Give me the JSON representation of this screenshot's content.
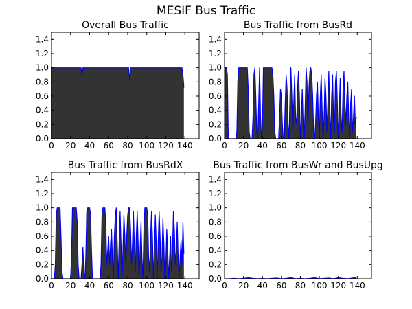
{
  "figure": {
    "title": "MESIF Bus Traffic"
  },
  "colors": {
    "fill": "#333333",
    "line": "#0000ff",
    "axes_bg": "#ffffff"
  },
  "chart_data": [
    {
      "type": "area",
      "title": "Overall Bus Traffic",
      "xlim": [
        0,
        155
      ],
      "ylim": [
        0.0,
        1.5
      ],
      "xticks": [
        0,
        20,
        40,
        60,
        80,
        100,
        120,
        140
      ],
      "yticks": [
        0.0,
        0.2,
        0.4,
        0.6,
        0.8,
        1.0,
        1.2,
        1.4
      ],
      "grid": false,
      "series": [
        {
          "x": [
            0,
            31,
            32,
            33,
            81,
            82,
            83,
            137,
            138,
            139
          ],
          "y": [
            1.0,
            1.0,
            0.9,
            1.0,
            1.0,
            0.83,
            1.0,
            1.0,
            0.9,
            0.72
          ]
        }
      ]
    },
    {
      "type": "area",
      "title": "Bus Traffic from BusRd",
      "xlim": [
        0,
        155
      ],
      "ylim": [
        0.0,
        1.5
      ],
      "xticks": [
        0,
        20,
        40,
        60,
        80,
        100,
        120,
        140
      ],
      "yticks": [
        0.0,
        0.2,
        0.4,
        0.6,
        0.8,
        1.0,
        1.2,
        1.4
      ],
      "grid": false,
      "series": [
        {
          "x": [
            0,
            1,
            2,
            3,
            4,
            5,
            6,
            7,
            8,
            9,
            10,
            11,
            12,
            13,
            14,
            15,
            16,
            17,
            18,
            19,
            20,
            21,
            22,
            23,
            24,
            25,
            26,
            27,
            28,
            29,
            30,
            31,
            32,
            33,
            34,
            35,
            36,
            37,
            38,
            39,
            40,
            41,
            42,
            43,
            44,
            45,
            46,
            47,
            48,
            49,
            50,
            51,
            52,
            53,
            54,
            55,
            56,
            57,
            58,
            59,
            60,
            61,
            62,
            63,
            64,
            65,
            66,
            67,
            68,
            69,
            70,
            71,
            72,
            73,
            74,
            75,
            76,
            77,
            78,
            79,
            80,
            81,
            82,
            83,
            84,
            85,
            86,
            87,
            88,
            89,
            90,
            91,
            92,
            93,
            94,
            95,
            96,
            97,
            98,
            99,
            100,
            101,
            102,
            103,
            104,
            105,
            106,
            107,
            108,
            109,
            110,
            111,
            112,
            113,
            114,
            115,
            116,
            117,
            118,
            119,
            120,
            121,
            122,
            123,
            124,
            125,
            126,
            127,
            128,
            129,
            130,
            131,
            132,
            133,
            134,
            135,
            136,
            137,
            138,
            139
          ],
          "y": [
            0.0,
            1.0,
            1.0,
            0.9,
            0.0,
            0.0,
            0.0,
            0.0,
            0.0,
            0.0,
            0.0,
            0.0,
            0.0,
            0.1,
            0.8,
            1.0,
            1.0,
            1.0,
            1.0,
            1.0,
            1.0,
            1.0,
            1.0,
            1.0,
            1.0,
            0.7,
            0.1,
            0.0,
            0.0,
            0.0,
            0.3,
            0.9,
            1.0,
            0.6,
            0.1,
            0.0,
            0.5,
            1.0,
            0.3,
            0.0,
            0.2,
            1.0,
            1.0,
            1.0,
            1.0,
            1.0,
            1.0,
            1.0,
            1.0,
            1.0,
            1.0,
            0.9,
            0.6,
            0.1,
            0.0,
            0.0,
            0.0,
            0.0,
            0.3,
            0.7,
            0.6,
            0.2,
            0.0,
            0.0,
            0.5,
            0.9,
            0.7,
            0.2,
            0.0,
            0.6,
            1.0,
            0.6,
            0.1,
            0.5,
            0.9,
            0.3,
            0.2,
            0.7,
            0.95,
            0.6,
            0.0,
            0.3,
            0.7,
            0.2,
            0.0,
            0.4,
            1.0,
            0.8,
            0.2,
            0.7,
            0.95,
            1.0,
            0.9,
            0.6,
            0.1,
            0.0,
            0.2,
            0.6,
            0.8,
            0.3,
            0.0,
            0.6,
            0.9,
            0.4,
            0.0,
            0.3,
            0.85,
            0.6,
            0.1,
            0.5,
            0.95,
            0.4,
            0.0,
            0.6,
            0.9,
            0.3,
            0.1,
            0.8,
            0.95,
            0.5,
            0.0,
            0.4,
            0.85,
            0.3,
            0.1,
            0.7,
            0.95,
            0.5,
            0.2,
            0.6,
            0.8,
            0.3,
            0.0,
            0.5,
            0.7,
            0.1,
            0.3,
            0.6,
            0.2,
            0.3
          ]
        }
      ]
    },
    {
      "type": "area",
      "title": "Bus Traffic from BusRdX",
      "xlim": [
        0,
        155
      ],
      "ylim": [
        0.0,
        1.5
      ],
      "xticks": [
        0,
        20,
        40,
        60,
        80,
        100,
        120,
        140
      ],
      "yticks": [
        0.0,
        0.2,
        0.4,
        0.6,
        0.8,
        1.0,
        1.2,
        1.4
      ],
      "grid": false,
      "series": [
        {
          "x": [
            0,
            1,
            2,
            3,
            4,
            5,
            6,
            7,
            8,
            9,
            10,
            11,
            12,
            13,
            14,
            15,
            16,
            17,
            18,
            19,
            20,
            21,
            22,
            23,
            24,
            25,
            26,
            27,
            28,
            29,
            30,
            31,
            32,
            33,
            34,
            35,
            36,
            37,
            38,
            39,
            40,
            41,
            42,
            43,
            44,
            45,
            46,
            47,
            48,
            49,
            50,
            51,
            52,
            53,
            54,
            55,
            56,
            57,
            58,
            59,
            60,
            61,
            62,
            63,
            64,
            65,
            66,
            67,
            68,
            69,
            70,
            71,
            72,
            73,
            74,
            75,
            76,
            77,
            78,
            79,
            80,
            81,
            82,
            83,
            84,
            85,
            86,
            87,
            88,
            89,
            90,
            91,
            92,
            93,
            94,
            95,
            96,
            97,
            98,
            99,
            100,
            101,
            102,
            103,
            104,
            105,
            106,
            107,
            108,
            109,
            110,
            111,
            112,
            113,
            114,
            115,
            116,
            117,
            118,
            119,
            120,
            121,
            122,
            123,
            124,
            125,
            126,
            127,
            128,
            129,
            130,
            131,
            132,
            133,
            134,
            135,
            136,
            137,
            138,
            139
          ],
          "y": [
            0.0,
            0.0,
            0.0,
            0.0,
            0.2,
            0.9,
            1.0,
            1.0,
            1.0,
            1.0,
            0.6,
            0.1,
            0.0,
            0.0,
            0.0,
            0.0,
            0.0,
            0.0,
            0.0,
            0.0,
            0.0,
            0.3,
            1.0,
            1.0,
            1.0,
            1.0,
            1.0,
            0.8,
            0.2,
            0.0,
            0.0,
            0.0,
            0.2,
            0.45,
            0.1,
            0.0,
            0.3,
            0.95,
            1.0,
            1.0,
            1.0,
            0.9,
            0.4,
            0.0,
            0.0,
            0.0,
            0.0,
            0.0,
            0.0,
            0.0,
            0.0,
            0.0,
            0.2,
            0.9,
            1.0,
            1.0,
            1.0,
            0.8,
            0.2,
            0.4,
            0.6,
            0.2,
            0.5,
            0.7,
            0.3,
            0.0,
            0.6,
            0.9,
            1.0,
            0.5,
            0.0,
            0.5,
            0.95,
            0.5,
            0.0,
            0.4,
            0.9,
            0.6,
            0.2,
            0.6,
            0.9,
            1.0,
            1.0,
            0.7,
            0.2,
            0.5,
            0.95,
            0.5,
            0.1,
            0.6,
            0.95,
            0.5,
            0.0,
            0.4,
            0.8,
            0.3,
            0.0,
            0.7,
            1.0,
            1.0,
            1.0,
            0.9,
            0.3,
            0.1,
            0.6,
            0.95,
            0.6,
            0.0,
            0.4,
            0.9,
            0.5,
            0.0,
            0.5,
            0.95,
            0.6,
            0.1,
            0.3,
            0.85,
            0.5,
            0.0,
            0.2,
            0.7,
            0.4,
            0.0,
            0.3,
            0.6,
            0.1,
            0.4,
            0.95,
            0.7,
            0.2,
            0.4,
            0.8,
            0.3,
            0.0,
            0.3,
            0.55,
            0.2,
            0.8,
            0.35
          ]
        }
      ]
    },
    {
      "type": "area",
      "title": "Bus Traffic from BusWr and BusUpg",
      "xlim": [
        0,
        155
      ],
      "ylim": [
        0.0,
        1.5
      ],
      "xticks": [
        0,
        20,
        40,
        60,
        80,
        100,
        120,
        140
      ],
      "yticks": [
        0.0,
        0.2,
        0.4,
        0.6,
        0.8,
        1.0,
        1.2,
        1.4
      ],
      "grid": false,
      "series": [
        {
          "x": [
            0,
            5,
            10,
            15,
            20,
            25,
            30,
            35,
            40,
            45,
            50,
            55,
            60,
            65,
            70,
            75,
            80,
            85,
            90,
            95,
            100,
            105,
            110,
            115,
            120,
            125,
            130,
            135,
            139
          ],
          "y": [
            0.0,
            0.0,
            0.005,
            0.0,
            0.005,
            0.015,
            0.005,
            0.0,
            0.005,
            0.0,
            0.005,
            0.01,
            0.0,
            0.005,
            0.015,
            0.0,
            0.005,
            0.0,
            0.005,
            0.015,
            0.0,
            0.005,
            0.01,
            0.0,
            0.015,
            0.005,
            0.0,
            0.01,
            0.02
          ]
        }
      ]
    }
  ]
}
